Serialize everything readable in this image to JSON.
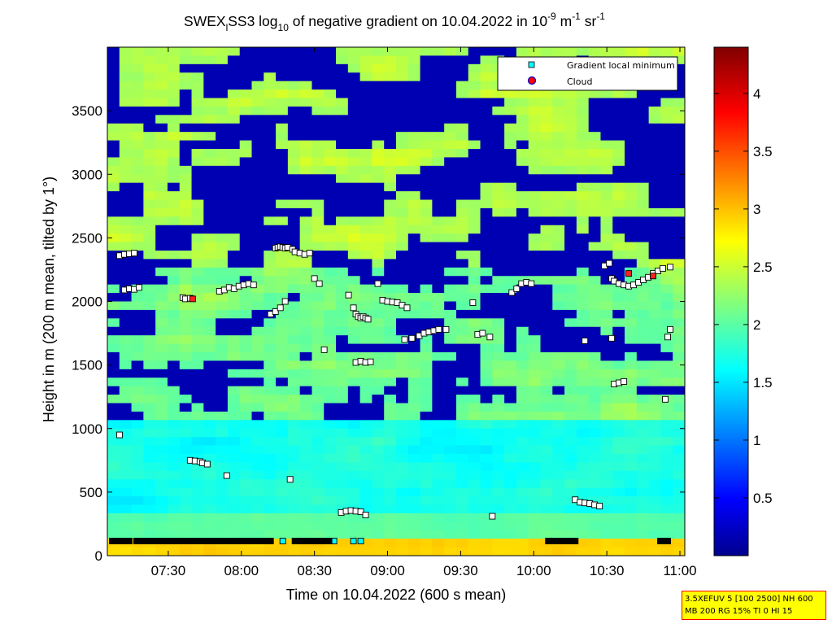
{
  "chart_data": {
    "type": "heatmap",
    "title": {
      "prefix": "SWEX",
      "sub1": "l",
      "mid": "SS3 log",
      "sub2": "10",
      "rest": " of negative gradient on 10.04.2022 in 10",
      "sup1": "-9",
      "unit_m": " m",
      "sup2": "-1",
      "unit_sr": " sr",
      "sup3": "-1"
    },
    "xlabel": "Time on 10.04.2022 (600 s mean)",
    "ylabel": "Height in m (200 m mean, tilted by 1°)",
    "x_start": "07:05",
    "x_end": "11:02",
    "xticks": [
      "07:30",
      "08:00",
      "08:30",
      "09:00",
      "09:30",
      "10:00",
      "10:30",
      "11:00"
    ],
    "ylim": [
      0,
      4000
    ],
    "yticks": [
      0,
      500,
      1000,
      1500,
      2000,
      2500,
      3000,
      3500
    ],
    "colorbar": {
      "range": [
        0,
        4.4
      ],
      "ticks": [
        "0.5",
        "1",
        "1.5",
        "2",
        "2.5",
        "3",
        "3.5",
        "4"
      ],
      "colormap": "jet"
    },
    "legend": {
      "position": "top-right",
      "items": [
        "Gradient local minimum",
        "Cloud"
      ]
    },
    "series": [
      {
        "name": "Gradient local minimum",
        "marker": "square",
        "points": [
          [
            "07:10",
            2360
          ],
          [
            "07:12",
            2370
          ],
          [
            "07:14",
            2375
          ],
          [
            "07:16",
            2380
          ],
          [
            "07:12",
            2090
          ],
          [
            "07:14",
            2100
          ],
          [
            "07:16",
            2095
          ],
          [
            "07:18",
            2110
          ],
          [
            "07:10",
            950
          ],
          [
            "07:36",
            2030
          ],
          [
            "07:37",
            2020
          ],
          [
            "07:39",
            2025
          ],
          [
            "07:51",
            2080
          ],
          [
            "07:53",
            2090
          ],
          [
            "07:55",
            2110
          ],
          [
            "07:57",
            2100
          ],
          [
            "07:59",
            2120
          ],
          [
            "08:01",
            2130
          ],
          [
            "08:03",
            2140
          ],
          [
            "08:05",
            2130
          ],
          [
            "08:14",
            2420
          ],
          [
            "08:15",
            2425
          ],
          [
            "08:16",
            2430
          ],
          [
            "08:17",
            2425
          ],
          [
            "08:18",
            2420
          ],
          [
            "08:19",
            2425
          ],
          [
            "08:21",
            2410
          ],
          [
            "08:22",
            2390
          ],
          [
            "08:24",
            2380
          ],
          [
            "08:26",
            2370
          ],
          [
            "08:28",
            2380
          ],
          [
            "08:12",
            1900
          ],
          [
            "08:14",
            1920
          ],
          [
            "08:16",
            1950
          ],
          [
            "08:18",
            2000
          ],
          [
            "08:30",
            2180
          ],
          [
            "08:32",
            2140
          ],
          [
            "08:34",
            1620
          ],
          [
            "08:44",
            2050
          ],
          [
            "08:46",
            1950
          ],
          [
            "08:47",
            1900
          ],
          [
            "08:48",
            1880
          ],
          [
            "08:49",
            1870
          ],
          [
            "08:50",
            1880
          ],
          [
            "08:51",
            1870
          ],
          [
            "08:52",
            1860
          ],
          [
            "08:47",
            1520
          ],
          [
            "08:49",
            1530
          ],
          [
            "08:51",
            1520
          ],
          [
            "08:53",
            1525
          ],
          [
            "08:56",
            2140
          ],
          [
            "08:58",
            2010
          ],
          [
            "09:00",
            2000
          ],
          [
            "09:02",
            1995
          ],
          [
            "09:04",
            1990
          ],
          [
            "09:06",
            1970
          ],
          [
            "09:08",
            1950
          ],
          [
            "09:07",
            1700
          ],
          [
            "09:10",
            1710
          ],
          [
            "09:13",
            1730
          ],
          [
            "09:15",
            1750
          ],
          [
            "09:17",
            1760
          ],
          [
            "09:19",
            1770
          ],
          [
            "09:21",
            1780
          ],
          [
            "09:24",
            1780
          ],
          [
            "09:35",
            1990
          ],
          [
            "09:37",
            1740
          ],
          [
            "09:39",
            1750
          ],
          [
            "09:42",
            1720
          ],
          [
            "09:51",
            2070
          ],
          [
            "09:53",
            2100
          ],
          [
            "09:55",
            2140
          ],
          [
            "09:57",
            2150
          ],
          [
            "09:59",
            2140
          ],
          [
            "10:17",
            440
          ],
          [
            "10:19",
            420
          ],
          [
            "10:21",
            415
          ],
          [
            "10:23",
            410
          ],
          [
            "10:25",
            400
          ],
          [
            "10:27",
            390
          ],
          [
            "10:21",
            1690
          ],
          [
            "10:29",
            2280
          ],
          [
            "10:31",
            2300
          ],
          [
            "10:32",
            2180
          ],
          [
            "10:33",
            2160
          ],
          [
            "10:35",
            2140
          ],
          [
            "10:37",
            2130
          ],
          [
            "10:39",
            2120
          ],
          [
            "10:41",
            2130
          ],
          [
            "10:43",
            2150
          ],
          [
            "10:45",
            2170
          ],
          [
            "10:47",
            2190
          ],
          [
            "10:49",
            2220
          ],
          [
            "10:51",
            2240
          ],
          [
            "10:53",
            2260
          ],
          [
            "10:56",
            2270
          ],
          [
            "10:32",
            1710
          ],
          [
            "10:54",
            1230
          ],
          [
            "10:56",
            1780
          ],
          [
            "10:55",
            1720
          ],
          [
            "10:33",
            1350
          ],
          [
            "10:35",
            1360
          ],
          [
            "10:37",
            1370
          ],
          [
            "07:39",
            750
          ],
          [
            "07:41",
            745
          ],
          [
            "07:43",
            740
          ],
          [
            "07:44",
            730
          ],
          [
            "07:46",
            720
          ],
          [
            "07:54",
            630
          ],
          [
            "08:20",
            600
          ],
          [
            "09:43",
            310
          ],
          [
            "08:41",
            340
          ],
          [
            "08:43",
            350
          ],
          [
            "08:45",
            355
          ],
          [
            "08:47",
            350
          ],
          [
            "08:49",
            345
          ],
          [
            "08:51",
            320
          ],
          [
            "07:08",
            115
          ],
          [
            "07:22",
            115
          ],
          [
            "07:56",
            115
          ],
          [
            "08:17",
            115
          ],
          [
            "08:38",
            115
          ],
          [
            "08:46",
            115
          ],
          [
            "08:49",
            115
          ],
          [
            "10:17",
            115
          ],
          [
            "10:54",
            115
          ]
        ]
      },
      {
        "name": "Cloud",
        "marker": "filled-square",
        "color": "#ff2020",
        "points": [
          [
            "07:40",
            2020
          ],
          [
            "10:39",
            2220
          ],
          [
            "10:49",
            2200
          ]
        ]
      }
    ]
  },
  "info_box": {
    "line1": "3.5XEFUV 5 [100 2500] NH 600",
    "line2": "MB 200 RG 15% TI 0 HI 15"
  }
}
